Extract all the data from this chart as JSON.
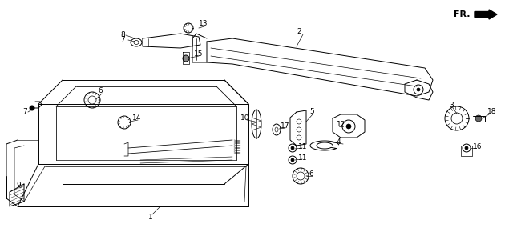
{
  "bg_color": "#ffffff",
  "lw": 0.7,
  "fig_w": 6.4,
  "fig_h": 3.05,
  "xlim": [
    0,
    640
  ],
  "ylim": [
    0,
    305
  ]
}
